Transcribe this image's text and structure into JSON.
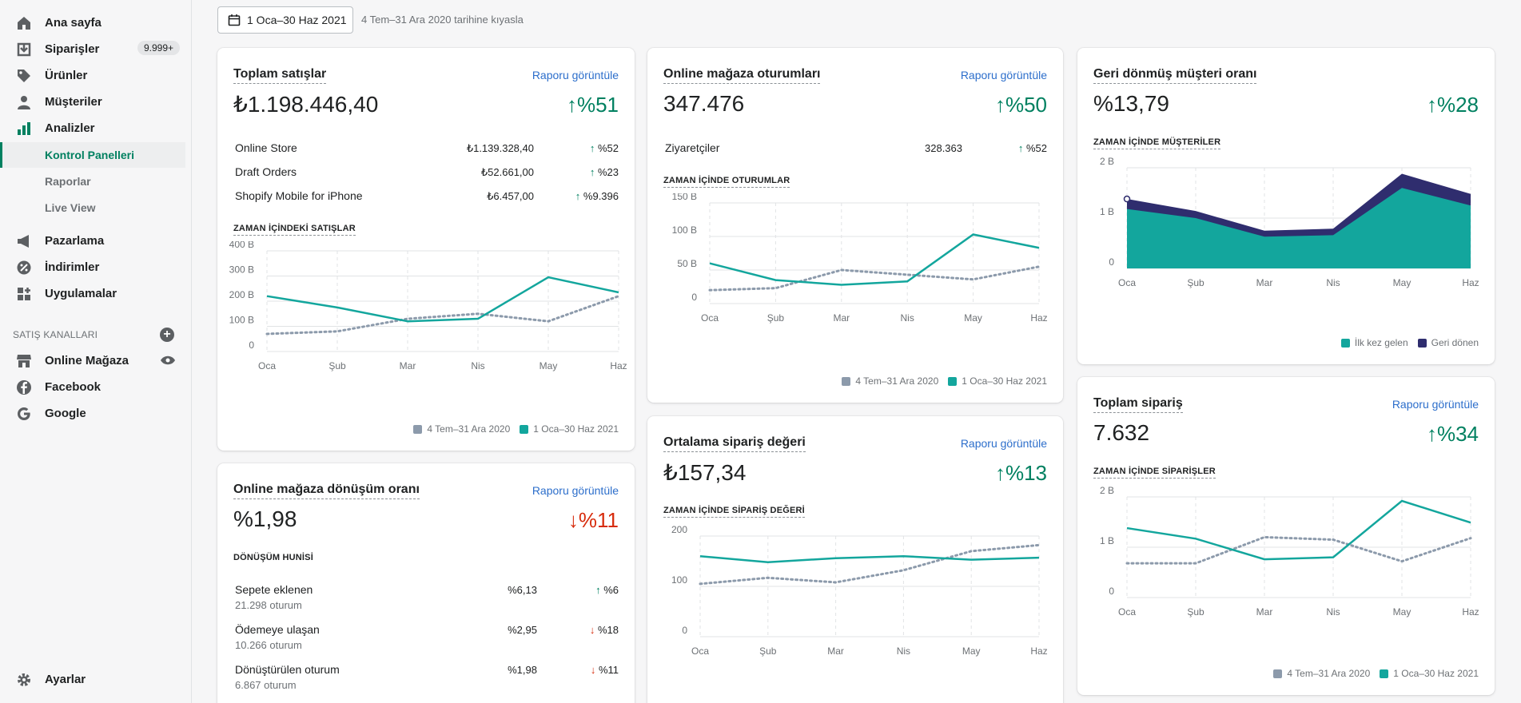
{
  "colors": {
    "accent": "#008060",
    "teal": "#13a69d",
    "grey": "#8c9aab",
    "navy": "#2f2d6e",
    "link": "#2c6ecb",
    "down": "#d72c0d"
  },
  "sidebar": {
    "items": [
      {
        "label": "Ana sayfa",
        "icon": "home-icon"
      },
      {
        "label": "Siparişler",
        "icon": "orders-icon",
        "badge": "9.999+"
      },
      {
        "label": "Ürünler",
        "icon": "tag-icon"
      },
      {
        "label": "Müşteriler",
        "icon": "person-icon"
      },
      {
        "label": "Analizler",
        "icon": "analytics-icon"
      }
    ],
    "sub_items": [
      {
        "label": "Kontrol Panelleri",
        "active": true
      },
      {
        "label": "Raporlar"
      },
      {
        "label": "Live View"
      }
    ],
    "items2": [
      {
        "label": "Pazarlama",
        "icon": "megaphone-icon"
      },
      {
        "label": "İndirimler",
        "icon": "discount-icon"
      },
      {
        "label": "Uygulamalar",
        "icon": "apps-icon"
      }
    ],
    "channels_title": "SATIŞ KANALLARI",
    "channels": [
      {
        "label": "Online Mağaza",
        "icon": "store-icon"
      },
      {
        "label": "Facebook",
        "icon": "facebook-icon"
      },
      {
        "label": "Google",
        "icon": "google-icon"
      }
    ],
    "settings": "Ayarlar"
  },
  "topbar": {
    "date_range": "1 Oca–30 Haz 2021",
    "compare": "4 Tem–31 Ara 2020 tarihine kıyasla"
  },
  "legend": {
    "prev": "4 Tem–31 Ara 2020",
    "curr": "1 Oca–30 Haz 2021",
    "first": "İlk kez gelen",
    "returning": "Geri dönen"
  },
  "months": [
    "Oca",
    "Şub",
    "Mar",
    "Nis",
    "May",
    "Haz"
  ],
  "cards": {
    "total_sales": {
      "title": "Toplam satışlar",
      "link": "Raporu görüntüle",
      "value": "₺1.198.446,40",
      "delta": "%51",
      "rows": [
        {
          "label": "Online Store",
          "value": "₺1.139.328,40",
          "delta": "%52"
        },
        {
          "label": "Draft Orders",
          "value": "₺52.661,00",
          "delta": "%23"
        },
        {
          "label": "Shopify Mobile for iPhone",
          "value": "₺6.457,00",
          "delta": "%9.396"
        }
      ],
      "chart_title": "ZAMAN İÇİNDEKİ SATIŞLAR"
    },
    "sessions": {
      "title": "Online mağaza oturumları",
      "link": "Raporu görüntüle",
      "value": "347.476",
      "delta": "%50",
      "rows": [
        {
          "label": "Ziyaretçiler",
          "value": "328.363",
          "delta": "%52"
        }
      ],
      "chart_title": "ZAMAN İÇİNDE OTURUMLAR"
    },
    "returning": {
      "title": "Geri dönmüş müşteri oranı",
      "value": "%13,79",
      "delta": "%28",
      "chart_title": "ZAMAN İÇİNDE MÜŞTERİLER"
    },
    "conversion": {
      "title": "Online mağaza dönüşüm oranı",
      "link": "Raporu görüntüle",
      "value": "%1,98",
      "delta": "%11",
      "funnel_title": "DÖNÜŞÜM HUNİSİ",
      "rows": [
        {
          "label": "Sepete eklenen",
          "sub": "21.298 oturum",
          "value": "%6,13",
          "delta": "%6",
          "dir": "up"
        },
        {
          "label": "Ödemeye ulaşan",
          "sub": "10.266 oturum",
          "value": "%2,95",
          "delta": "%18",
          "dir": "down"
        },
        {
          "label": "Dönüştürülen oturum",
          "sub": "6.867 oturum",
          "value": "%1,98",
          "delta": "%11",
          "dir": "down"
        }
      ]
    },
    "aov": {
      "title": "Ortalama sipariş değeri",
      "link": "Raporu görüntüle",
      "value": "₺157,34",
      "delta": "%13",
      "chart_title": "ZAMAN İÇİNDE SİPARİŞ DEĞERİ"
    },
    "orders": {
      "title": "Toplam sipariş",
      "link": "Raporu görüntüle",
      "value": "7.632",
      "delta": "%34",
      "chart_title": "ZAMAN İÇİNDE SİPARİŞLER"
    }
  },
  "chart_data": [
    {
      "type": "line",
      "title": "ZAMAN İÇİNDEKİ SATIŞLAR",
      "categories": [
        "Oca",
        "Şub",
        "Mar",
        "Nis",
        "May",
        "Haz"
      ],
      "yticks": [
        "0",
        "100 B",
        "200 B",
        "300 B",
        "400 B"
      ],
      "ylim": [
        0,
        400000
      ],
      "series": [
        {
          "name": "4 Tem–31 Ara 2020",
          "values": [
            70000,
            80000,
            130000,
            150000,
            120000,
            220000
          ]
        },
        {
          "name": "1 Oca–30 Haz 2021",
          "values": [
            220000,
            175000,
            120000,
            130000,
            295000,
            235000
          ]
        }
      ]
    },
    {
      "type": "line",
      "title": "ZAMAN İÇİNDE OTURUMLAR",
      "categories": [
        "Oca",
        "Şub",
        "Mar",
        "Nis",
        "May",
        "Haz"
      ],
      "yticks": [
        "0",
        "50 B",
        "100 B",
        "150 B"
      ],
      "ylim": [
        0,
        150000
      ],
      "series": [
        {
          "name": "4 Tem–31 Ara 2020",
          "values": [
            20000,
            23000,
            50000,
            43000,
            36000,
            55000
          ]
        },
        {
          "name": "1 Oca–30 Haz 2021",
          "values": [
            60000,
            35000,
            28000,
            33000,
            103000,
            83000
          ]
        }
      ]
    },
    {
      "type": "area",
      "title": "ZAMAN İÇİNDE MÜŞTERİLER",
      "categories": [
        "Oca",
        "Şub",
        "Mar",
        "Nis",
        "May",
        "Haz"
      ],
      "yticks": [
        "0",
        "1 B",
        "2 B"
      ],
      "ylim": [
        0,
        2000
      ],
      "series": [
        {
          "name": "İlk kez gelen",
          "values": [
            1180,
            1000,
            630,
            660,
            1600,
            1250
          ]
        },
        {
          "name": "Geri dönen",
          "values": [
            200,
            140,
            120,
            130,
            280,
            230
          ]
        }
      ]
    },
    {
      "type": "line",
      "title": "ZAMAN İÇİNDE SİPARİŞ DEĞERİ",
      "categories": [
        "Oca",
        "Şub",
        "Mar",
        "Nis",
        "May",
        "Haz"
      ],
      "yticks": [
        "0",
        "100",
        "200"
      ],
      "ylim": [
        0,
        200
      ],
      "series": [
        {
          "name": "4 Tem–31 Ara 2020",
          "values": [
            105,
            117,
            108,
            132,
            170,
            182
          ]
        },
        {
          "name": "1 Oca–30 Haz 2021",
          "values": [
            160,
            148,
            156,
            160,
            153,
            157
          ]
        }
      ]
    },
    {
      "type": "line",
      "title": "ZAMAN İÇİNDE SİPARİŞLER",
      "categories": [
        "Oca",
        "Şub",
        "Mar",
        "Nis",
        "May",
        "Haz"
      ],
      "yticks": [
        "0",
        "1 B",
        "2 B"
      ],
      "ylim": [
        0,
        2000
      ],
      "series": [
        {
          "name": "4 Tem–31 Ara 2020",
          "values": [
            680,
            680,
            1200,
            1150,
            720,
            1180
          ]
        },
        {
          "name": "1 Oca–30 Haz 2021",
          "values": [
            1380,
            1170,
            760,
            800,
            1920,
            1490
          ]
        }
      ]
    }
  ]
}
